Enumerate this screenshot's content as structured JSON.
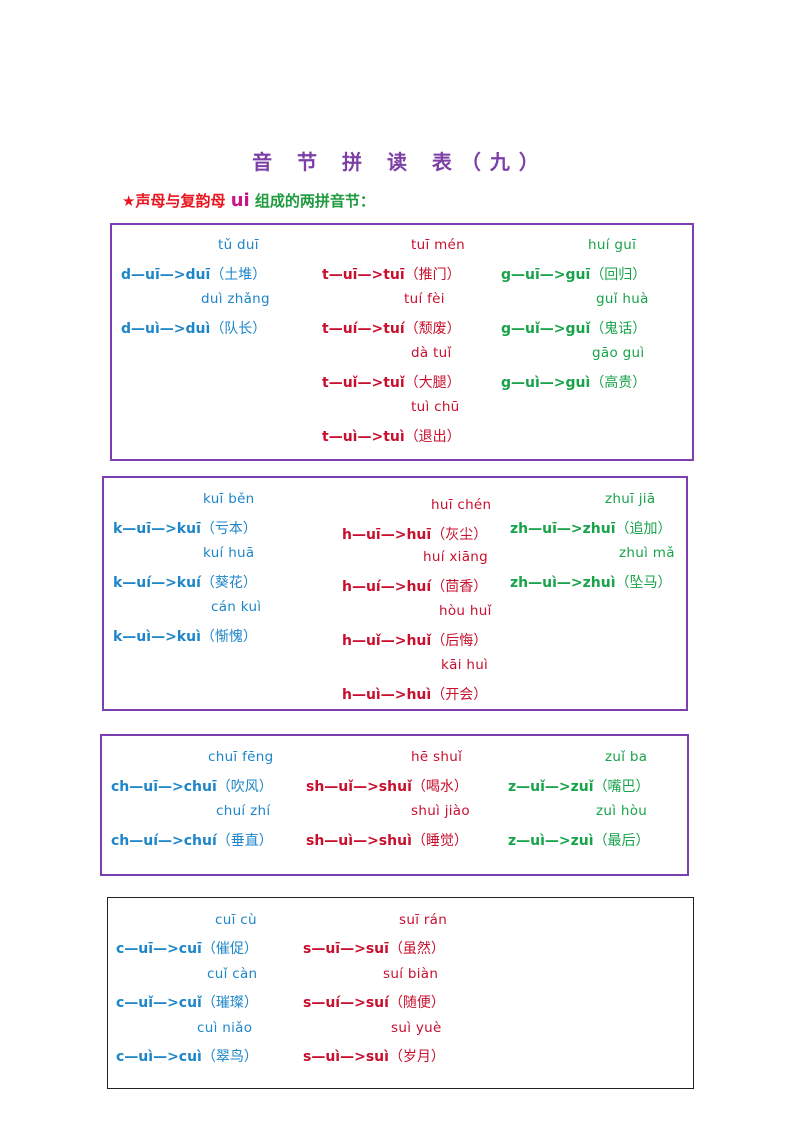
{
  "title": "音 节 拼 读 表（九）",
  "subtitle": {
    "star": "★",
    "prefix": "声母与复韵母",
    "ui": "ui",
    "suffix": "组成的两拼音节："
  },
  "box1": {
    "col1": [
      {
        "pinyin": "tǔ duī",
        "spell": "d—uī—>duī",
        "word": "（土堆）"
      },
      {
        "pinyin": "duì zhǎng",
        "spell": "d—uì—>duì",
        "word": "（队长）"
      }
    ],
    "col2": [
      {
        "pinyin": "tuī mén",
        "spell": "t—uī—>tuī",
        "word": "（推门）"
      },
      {
        "pinyin": "tuí fèi",
        "spell": "t—uí—>tuí",
        "word": "（颓废）"
      },
      {
        "pinyin": "dà tuǐ",
        "spell": "t—uǐ—>tuǐ",
        "word": "（大腿）"
      },
      {
        "pinyin": "tuì chū",
        "spell": "t—uì—>tuì",
        "word": "（退出）"
      }
    ],
    "col3": [
      {
        "pinyin": "huí guī",
        "spell": "g—uī—>guī",
        "word": "（回归）"
      },
      {
        "pinyin": "guǐ huà",
        "spell": "g—uǐ—>guǐ",
        "word": "（鬼话）"
      },
      {
        "pinyin": "gāo guì",
        "spell": "g—uì—>guì",
        "word": "（高贵）"
      }
    ]
  },
  "box2": {
    "col1": [
      {
        "pinyin": "kuī běn",
        "spell": "k—uī—>kuī",
        "word": "（亏本）"
      },
      {
        "pinyin": "kuí huā",
        "spell": "k—uí—>kuí",
        "word": "（葵花）"
      },
      {
        "pinyin": "cán kuì",
        "spell": "k—uì—>kuì",
        "word": "（惭愧）"
      }
    ],
    "col2": [
      {
        "pinyin": "huī chén",
        "spell": "h—uī—>huī",
        "word": "（灰尘）"
      },
      {
        "pinyin": "huí xiāng",
        "spell": "h—uí—>huí",
        "word": "（茴香）"
      },
      {
        "pinyin": "hòu huǐ",
        "spell": "h—uǐ—>huǐ",
        "word": "（后悔）"
      },
      {
        "pinyin": "kāi huì",
        "spell": "h—uì—>huì",
        "word": "（开会）"
      }
    ],
    "col3": [
      {
        "pinyin": "zhuī jiā",
        "spell": "zh—uī—>zhuī",
        "word": "（追加）"
      },
      {
        "pinyin": "zhuì mǎ",
        "spell": "zh—uì—>zhuì",
        "word": "（坠马）"
      }
    ]
  },
  "box3": {
    "col1": [
      {
        "pinyin": "chuī fēng",
        "spell": "ch—uī—>chuī",
        "word": "（吹风）"
      },
      {
        "pinyin": "chuí zhí",
        "spell": "ch—uí—>chuí",
        "word": "（垂直）"
      }
    ],
    "col2": [
      {
        "pinyin": "hē shuǐ",
        "spell": "sh—uǐ—>shuǐ",
        "word": "（喝水）"
      },
      {
        "pinyin": "shuì jiào",
        "spell": "sh—uì—>shuì",
        "word": "（睡觉）"
      }
    ],
    "col3": [
      {
        "pinyin": "zuǐ ba",
        "spell": "z—uǐ—>zuǐ",
        "word": "（嘴巴）"
      },
      {
        "pinyin": "zuì hòu",
        "spell": "z—uì—>zuì",
        "word": "（最后）"
      }
    ]
  },
  "box4": {
    "col1": [
      {
        "pinyin": "cuī cù",
        "spell": "c—uī—>cuī",
        "word": "（催促）"
      },
      {
        "pinyin": "cuǐ càn",
        "spell": "c—uǐ—>cuǐ",
        "word": "（璀璨）"
      },
      {
        "pinyin": "cuì niǎo",
        "spell": "c—uì—>cuì",
        "word": "（翠鸟）"
      }
    ],
    "col2": [
      {
        "pinyin": "suī rán",
        "spell": "s—uī—>suī",
        "word": "（虽然）"
      },
      {
        "pinyin": "suí biàn",
        "spell": "s—uí—>suí",
        "word": "（随便）"
      },
      {
        "pinyin": "suì yuè",
        "spell": "s—uì—>suì",
        "word": "（岁月）"
      }
    ]
  },
  "colors": {
    "title": "#7b3fa6",
    "blue": "#1e86c8",
    "red": "#c8102e",
    "green": "#18a34a",
    "box_border": "#7c3fb0"
  }
}
